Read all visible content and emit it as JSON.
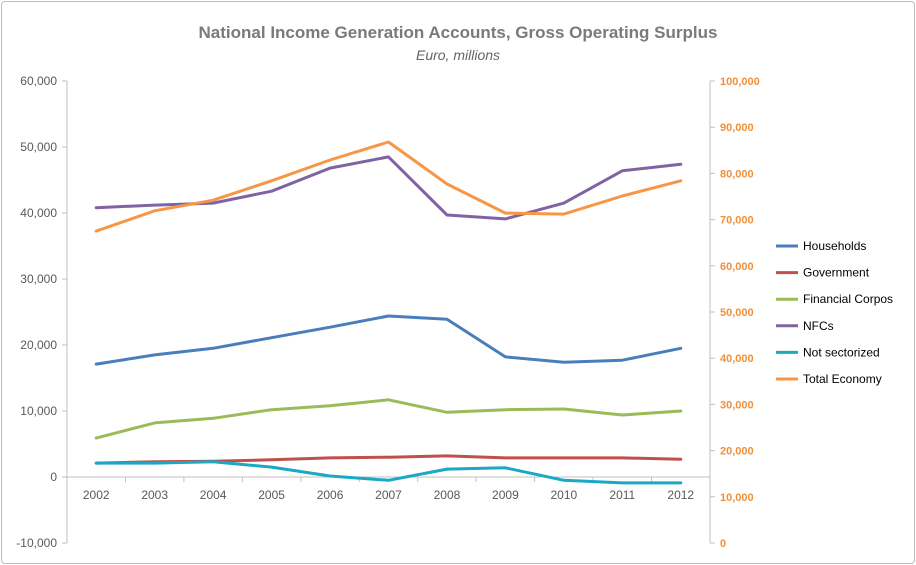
{
  "chart_data": {
    "type": "line",
    "title": "National Income Generation Accounts, Gross Operating Surplus",
    "subtitle": "Euro, millions",
    "categories": [
      "2002",
      "2003",
      "2004",
      "2005",
      "2006",
      "2007",
      "2008",
      "2009",
      "2010",
      "2011",
      "2012"
    ],
    "y_left": {
      "range": [
        -10000,
        60000
      ],
      "ticks": [
        "-10,000",
        "0",
        "10,000",
        "20,000",
        "30,000",
        "40,000",
        "50,000",
        "60,000"
      ]
    },
    "y_right": {
      "range": [
        0,
        100000
      ],
      "ticks": [
        "0",
        "10,000",
        "20,000",
        "30,000",
        "40,000",
        "50,000",
        "60,000",
        "70,000",
        "80,000",
        "90,000",
        "100,000"
      ],
      "color": "#f0903a"
    },
    "grid": false,
    "legend": "right",
    "series": [
      {
        "name": "Households",
        "axis": "left",
        "color": "#4a7ebb",
        "values": [
          17100,
          18500,
          19500,
          21100,
          22700,
          24400,
          23900,
          18200,
          17400,
          17700,
          19500
        ]
      },
      {
        "name": "Government",
        "axis": "left",
        "color": "#c0504d",
        "values": [
          2100,
          2300,
          2400,
          2600,
          2900,
          3000,
          3200,
          2900,
          2900,
          2900,
          2700
        ]
      },
      {
        "name": "Financial Corpos",
        "axis": "left",
        "color": "#9bbb59",
        "values": [
          5900,
          8200,
          8900,
          10200,
          10800,
          11700,
          9800,
          10200,
          10300,
          9400,
          10000
        ]
      },
      {
        "name": "NFCs",
        "axis": "left",
        "color": "#8064a2",
        "values": [
          40800,
          41200,
          41500,
          43300,
          46800,
          48500,
          39700,
          39100,
          41500,
          46400,
          47400
        ]
      },
      {
        "name": "Not sectorized",
        "axis": "left",
        "color": "#1ba8c4",
        "values": [
          2100,
          2100,
          2300,
          1500,
          150,
          -500,
          1200,
          1400,
          -500,
          -900,
          -900
        ]
      },
      {
        "name": "Total Economy",
        "axis": "right",
        "color": "#f79646",
        "values": [
          67500,
          71900,
          74200,
          78400,
          82900,
          86800,
          77700,
          71400,
          71200,
          75100,
          78400
        ]
      }
    ]
  }
}
